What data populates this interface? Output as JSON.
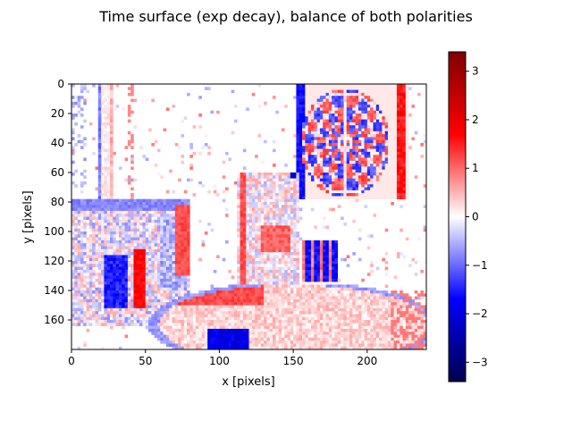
{
  "chart_data": {
    "type": "heatmap",
    "title": "Time surface (exp decay), balance of both polarities",
    "xlabel": "x [pixels]",
    "ylabel": "y [pixels]",
    "xlim": [
      0,
      240
    ],
    "ylim": [
      180,
      0
    ],
    "x_ticks": [
      0,
      50,
      100,
      150,
      200
    ],
    "y_ticks": [
      0,
      20,
      40,
      60,
      80,
      100,
      120,
      140,
      160
    ],
    "grid": false,
    "colormap": "seismic",
    "colormap_stops": [
      "#00004c",
      "#0000ff",
      "#ffffff",
      "#ff0000",
      "#7f0000"
    ],
    "colorbar": {
      "position": "right",
      "range": [
        -3.4,
        3.4
      ],
      "ticks": [
        -3,
        -2,
        -1,
        0,
        1,
        2,
        3
      ]
    },
    "scene": {
      "background_value": 0.02,
      "note_features": [
        {
          "kind": "dartboard",
          "x": [
            152,
            224
          ],
          "y": [
            0,
            78
          ],
          "values": [
            -1.6,
            1.4
          ]
        },
        {
          "kind": "pole",
          "x": [
            18,
            28
          ],
          "y": [
            0,
            80
          ],
          "values": [
            -1.2,
            0.6
          ]
        },
        {
          "kind": "box",
          "x": [
            112,
            155
          ],
          "y": [
            60,
            140
          ],
          "values": [
            -1.3,
            1.1
          ]
        },
        {
          "kind": "shelf",
          "x": [
            0,
            80
          ],
          "y": [
            78,
            165
          ],
          "values": [
            -1.8,
            1.6
          ]
        },
        {
          "kind": "disc",
          "x": [
            52,
            240
          ],
          "y": [
            135,
            180
          ],
          "values": [
            -2.4,
            1.3
          ]
        }
      ]
    }
  }
}
